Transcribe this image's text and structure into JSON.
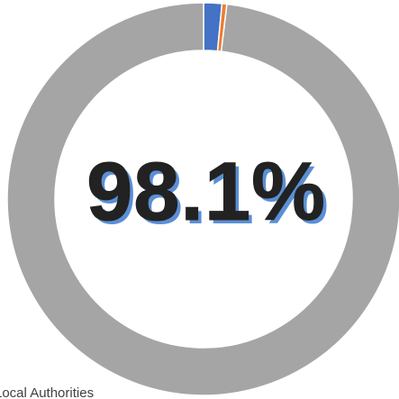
{
  "chart_data": {
    "type": "donut",
    "values": [
      1.5,
      0.4,
      98.1
    ],
    "colors": [
      "#4472c4",
      "#ed7d31",
      "#a5a5a5"
    ],
    "center_label": "98.1%",
    "label": "Local Authorities"
  }
}
